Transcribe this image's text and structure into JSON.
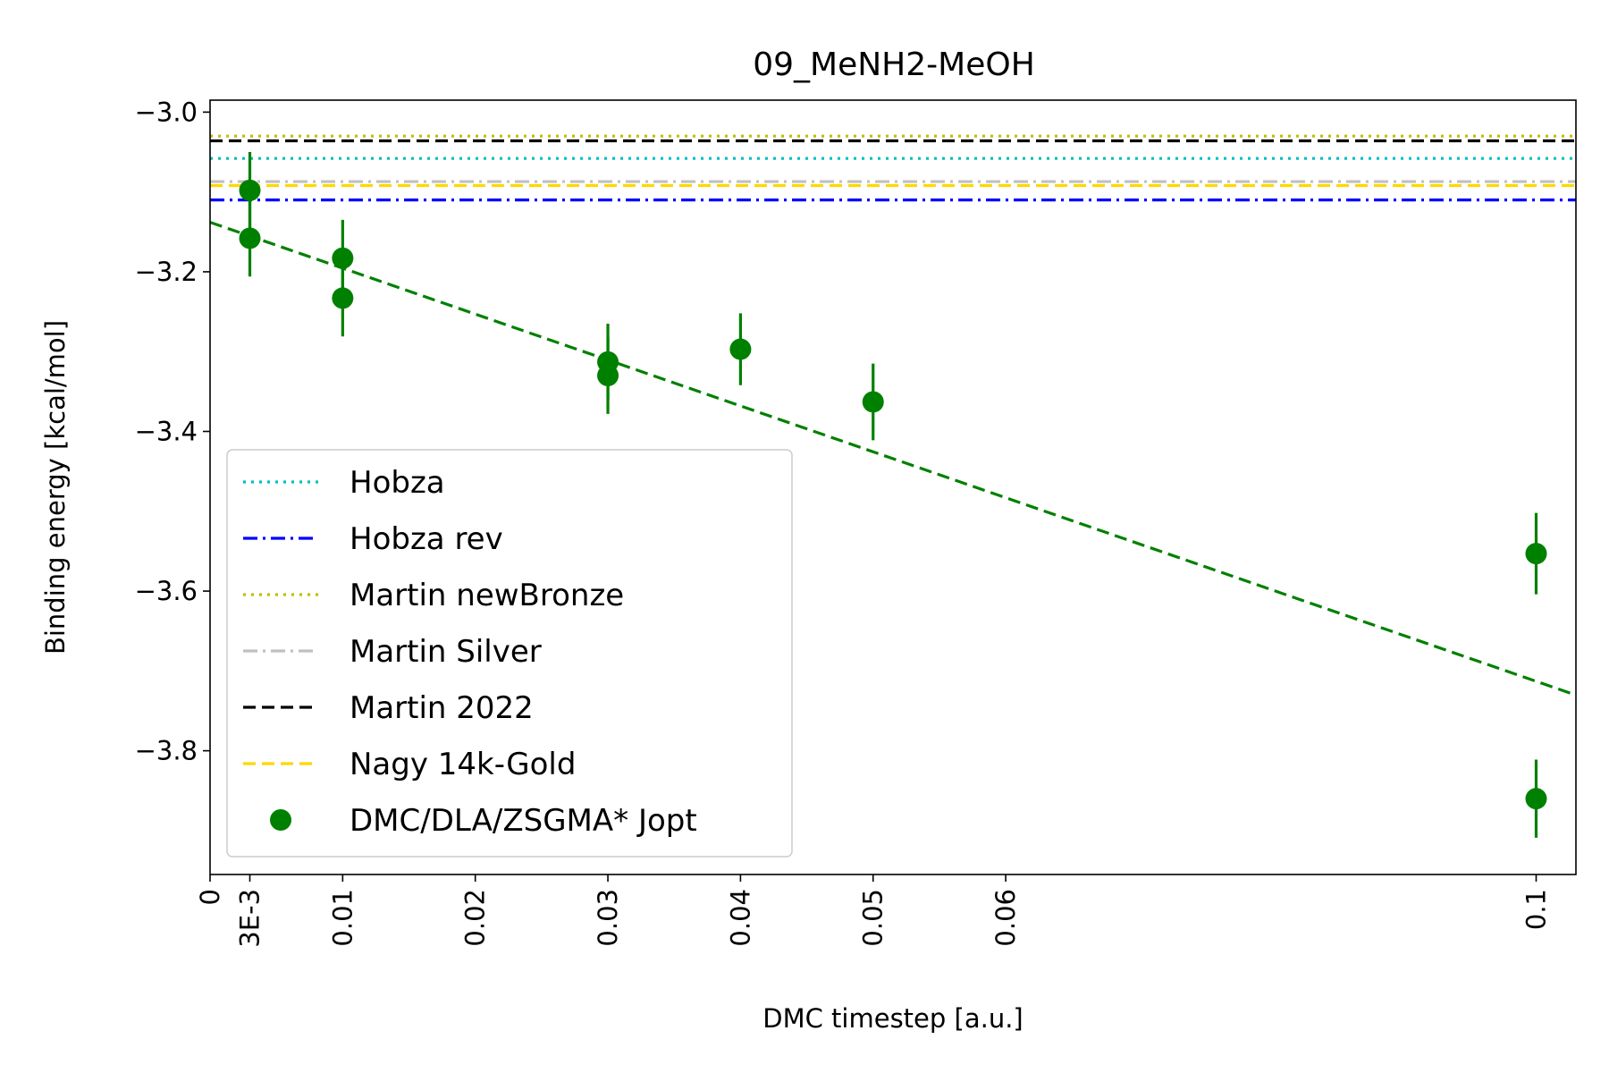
{
  "chart_data": {
    "type": "scatter",
    "title": "09_MeNH2-MeOH",
    "xlabel": "DMC timestep [a.u.]",
    "ylabel": "Binding energy [kcal/mol]",
    "xlim": [
      0,
      0.103
    ],
    "ylim": [
      -3.955,
      -2.985
    ],
    "x_ticks": [
      {
        "value": 0,
        "label": "0"
      },
      {
        "value": 0.003,
        "label": "3E-3"
      },
      {
        "value": 0.01,
        "label": "0.01"
      },
      {
        "value": 0.02,
        "label": "0.02"
      },
      {
        "value": 0.03,
        "label": "0.03"
      },
      {
        "value": 0.04,
        "label": "0.04"
      },
      {
        "value": 0.05,
        "label": "0.05"
      },
      {
        "value": 0.06,
        "label": "0.06"
      },
      {
        "value": 0.1,
        "label": "0.1"
      }
    ],
    "y_ticks": [
      {
        "value": -3.0,
        "label": "−3.0"
      },
      {
        "value": -3.2,
        "label": "−3.2"
      },
      {
        "value": -3.4,
        "label": "−3.4"
      },
      {
        "value": -3.6,
        "label": "−3.6"
      },
      {
        "value": -3.8,
        "label": "−3.8"
      }
    ],
    "grid": false,
    "legend_position": "lower-left",
    "reference_lines": [
      {
        "name": "Hobza",
        "y": -3.058,
        "color": "#00bfbf",
        "style": "dotted"
      },
      {
        "name": "Hobza rev",
        "y": -3.11,
        "color": "#0000ff",
        "style": "dashdot"
      },
      {
        "name": "Martin newBronze",
        "y": -3.03,
        "color": "#bfbf00",
        "style": "dotted"
      },
      {
        "name": "Martin Silver",
        "y": -3.087,
        "color": "#c0c0c0",
        "style": "dashdot"
      },
      {
        "name": "Martin 2022",
        "y": -3.036,
        "color": "#000000",
        "style": "dashed"
      },
      {
        "name": "Nagy 14k-Gold",
        "y": -3.092,
        "color": "#ffd700",
        "style": "dashed"
      }
    ],
    "series": [
      {
        "name": "DMC/DLA/ZSGMA* Jopt",
        "color": "#008000",
        "points": [
          {
            "x": 0.003,
            "y": -3.098,
            "err": 0.048
          },
          {
            "x": 0.003,
            "y": -3.158,
            "err": 0.048
          },
          {
            "x": 0.01,
            "y": -3.183,
            "err": 0.048
          },
          {
            "x": 0.01,
            "y": -3.233,
            "err": 0.048
          },
          {
            "x": 0.03,
            "y": -3.313,
            "err": 0.048
          },
          {
            "x": 0.03,
            "y": -3.33,
            "err": 0.048
          },
          {
            "x": 0.04,
            "y": -3.297,
            "err": 0.045
          },
          {
            "x": 0.05,
            "y": -3.363,
            "err": 0.048
          },
          {
            "x": 0.1,
            "y": -3.553,
            "err": 0.051
          },
          {
            "x": 0.1,
            "y": -3.86,
            "err": 0.049
          }
        ]
      }
    ],
    "fit_line": {
      "color": "#008000",
      "style": "dashed",
      "intercept": -3.138,
      "slope": -5.75
    }
  }
}
